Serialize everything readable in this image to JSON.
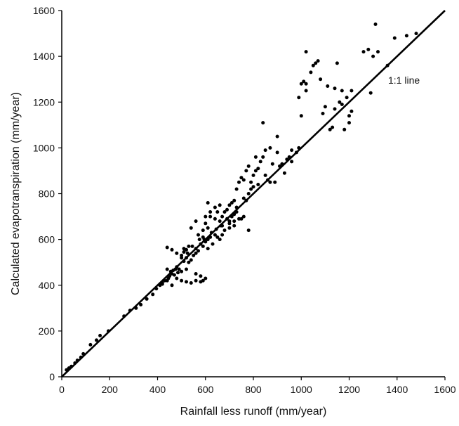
{
  "chart_data": {
    "type": "scatter",
    "title": "",
    "xlabel": "Rainfall  less runoff (mm/year)",
    "ylabel": "Calculated evapotranspiration (mm/year)",
    "xlim": [
      0,
      1600
    ],
    "ylim": [
      0,
      1600
    ],
    "xticks": [
      "0",
      "200",
      "400",
      "600",
      "800",
      "1000",
      "1200",
      "1400",
      "1600"
    ],
    "yticks": [
      "0",
      "200",
      "400",
      "600",
      "800",
      "1000",
      "1200",
      "1400",
      "1600"
    ],
    "grid": false,
    "reference_line": {
      "label": "1:1 line",
      "from": [
        0,
        0
      ],
      "to": [
        1600,
        1600
      ]
    },
    "series": [
      {
        "marker_color": "#000000",
        "points": [
          [
            20,
            30
          ],
          [
            30,
            38
          ],
          [
            40,
            45
          ],
          [
            55,
            60
          ],
          [
            65,
            72
          ],
          [
            80,
            85
          ],
          [
            90,
            100
          ],
          [
            120,
            140
          ],
          [
            145,
            160
          ],
          [
            160,
            180
          ],
          [
            195,
            200
          ],
          [
            260,
            265
          ],
          [
            285,
            290
          ],
          [
            310,
            300
          ],
          [
            330,
            315
          ],
          [
            355,
            340
          ],
          [
            380,
            360
          ],
          [
            395,
            385
          ],
          [
            410,
            400
          ],
          [
            420,
            405
          ],
          [
            430,
            420
          ],
          [
            440,
            470
          ],
          [
            445,
            430
          ],
          [
            450,
            440
          ],
          [
            455,
            460
          ],
          [
            460,
            450
          ],
          [
            465,
            465
          ],
          [
            470,
            445
          ],
          [
            475,
            470
          ],
          [
            480,
            430
          ],
          [
            485,
            455
          ],
          [
            490,
            470
          ],
          [
            440,
            565
          ],
          [
            460,
            555
          ],
          [
            480,
            540
          ],
          [
            500,
            520
          ],
          [
            510,
            505
          ],
          [
            520,
            520
          ],
          [
            525,
            540
          ],
          [
            530,
            500
          ],
          [
            540,
            510
          ],
          [
            550,
            530
          ],
          [
            510,
            545
          ],
          [
            520,
            555
          ],
          [
            545,
            570
          ],
          [
            560,
            560
          ],
          [
            570,
            550
          ],
          [
            580,
            580
          ],
          [
            590,
            570
          ],
          [
            600,
            590
          ],
          [
            610,
            600
          ],
          [
            620,
            610
          ],
          [
            420,
            410
          ],
          [
            440,
            420
          ],
          [
            460,
            400
          ],
          [
            500,
            420
          ],
          [
            520,
            415
          ],
          [
            540,
            410
          ],
          [
            560,
            420
          ],
          [
            580,
            415
          ],
          [
            590,
            420
          ],
          [
            600,
            430
          ],
          [
            580,
            440
          ],
          [
            560,
            450
          ],
          [
            590,
            640
          ],
          [
            610,
            650
          ],
          [
            600,
            670
          ],
          [
            620,
            700
          ],
          [
            640,
            690
          ],
          [
            650,
            720
          ],
          [
            660,
            680
          ],
          [
            670,
            700
          ],
          [
            680,
            720
          ],
          [
            690,
            690
          ],
          [
            700,
            680
          ],
          [
            710,
            700
          ],
          [
            720,
            710
          ],
          [
            730,
            720
          ],
          [
            600,
            700
          ],
          [
            620,
            720
          ],
          [
            610,
            760
          ],
          [
            640,
            740
          ],
          [
            660,
            750
          ],
          [
            650,
            610
          ],
          [
            670,
            620
          ],
          [
            680,
            640
          ],
          [
            700,
            650
          ],
          [
            720,
            660
          ],
          [
            740,
            690
          ],
          [
            760,
            700
          ],
          [
            780,
            640
          ],
          [
            560,
            680
          ],
          [
            540,
            650
          ],
          [
            570,
            620
          ],
          [
            590,
            610
          ],
          [
            610,
            560
          ],
          [
            630,
            580
          ],
          [
            660,
            600
          ],
          [
            640,
            620
          ],
          [
            670,
            660
          ],
          [
            700,
            670
          ],
          [
            720,
            680
          ],
          [
            750,
            690
          ],
          [
            500,
            530
          ],
          [
            520,
            470
          ],
          [
            500,
            460
          ],
          [
            480,
            480
          ],
          [
            510,
            560
          ],
          [
            530,
            570
          ],
          [
            560,
            540
          ],
          [
            575,
            600
          ],
          [
            595,
            600
          ],
          [
            625,
            630
          ],
          [
            645,
            645
          ],
          [
            665,
            660
          ],
          [
            730,
            820
          ],
          [
            740,
            850
          ],
          [
            750,
            870
          ],
          [
            760,
            860
          ],
          [
            770,
            900
          ],
          [
            780,
            920
          ],
          [
            790,
            850
          ],
          [
            800,
            880
          ],
          [
            810,
            900
          ],
          [
            820,
            910
          ],
          [
            830,
            940
          ],
          [
            840,
            960
          ],
          [
            850,
            880
          ],
          [
            860,
            860
          ],
          [
            720,
            770
          ],
          [
            760,
            780
          ],
          [
            770,
            770
          ],
          [
            700,
            750
          ],
          [
            690,
            730
          ],
          [
            710,
            760
          ],
          [
            730,
            740
          ],
          [
            780,
            800
          ],
          [
            790,
            820
          ],
          [
            800,
            830
          ],
          [
            820,
            840
          ],
          [
            840,
            1110
          ],
          [
            870,
            1000
          ],
          [
            880,
            930
          ],
          [
            900,
            980
          ],
          [
            910,
            920
          ],
          [
            930,
            890
          ],
          [
            950,
            960
          ],
          [
            960,
            940
          ],
          [
            980,
            980
          ],
          [
            990,
            1000
          ],
          [
            810,
            960
          ],
          [
            850,
            990
          ],
          [
            870,
            850
          ],
          [
            890,
            850
          ],
          [
            900,
            1050
          ],
          [
            920,
            930
          ],
          [
            940,
            950
          ],
          [
            960,
            990
          ],
          [
            990,
            1220
          ],
          [
            1000,
            1140
          ],
          [
            1000,
            1280
          ],
          [
            1010,
            1290
          ],
          [
            1020,
            1250
          ],
          [
            1020,
            1280
          ],
          [
            1040,
            1330
          ],
          [
            1060,
            1370
          ],
          [
            1070,
            1380
          ],
          [
            1080,
            1300
          ],
          [
            1100,
            1180
          ],
          [
            1110,
            1270
          ],
          [
            1120,
            1080
          ],
          [
            1130,
            1090
          ],
          [
            1140,
            1260
          ],
          [
            1150,
            1370
          ],
          [
            1160,
            1200
          ],
          [
            1170,
            1190
          ],
          [
            1180,
            1080
          ],
          [
            1190,
            1220
          ],
          [
            1200,
            1140
          ],
          [
            1210,
            1160
          ],
          [
            1200,
            1110
          ],
          [
            1020,
            1420
          ],
          [
            1050,
            1360
          ],
          [
            1090,
            1150
          ],
          [
            1140,
            1170
          ],
          [
            1170,
            1250
          ],
          [
            1210,
            1250
          ],
          [
            1260,
            1420
          ],
          [
            1280,
            1430
          ],
          [
            1290,
            1240
          ],
          [
            1300,
            1400
          ],
          [
            1310,
            1540
          ],
          [
            1320,
            1420
          ],
          [
            1360,
            1360
          ],
          [
            1390,
            1480
          ],
          [
            1440,
            1490
          ],
          [
            1480,
            1500
          ]
        ]
      }
    ]
  }
}
